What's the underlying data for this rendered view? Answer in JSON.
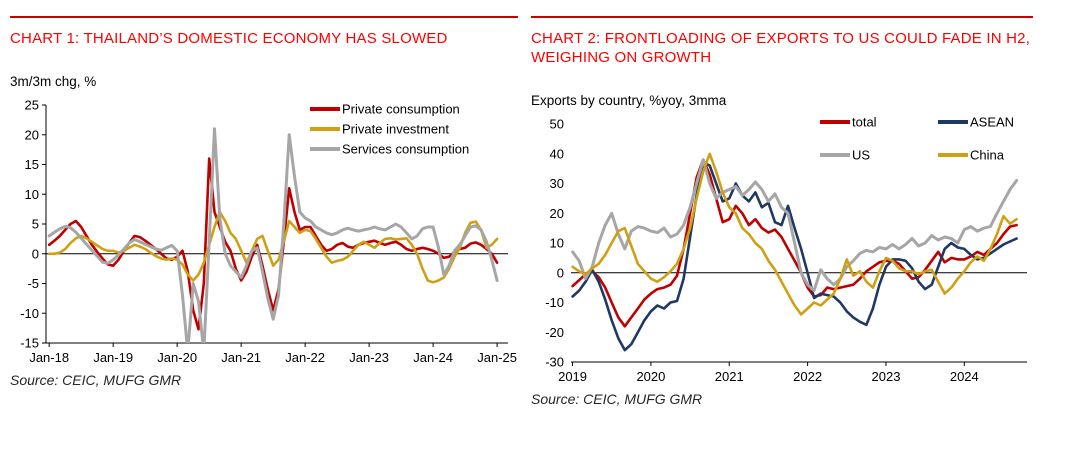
{
  "page": {
    "accent_rule_color": "#CC0000",
    "title_color": "#FF0000",
    "axis_color": "#000000",
    "source_note": "Source: CEIC, MUFG GMR"
  },
  "chart_data": [
    {
      "id": "chart1",
      "type": "line",
      "title": "CHART 1: THAILAND’S DOMESTIC ECONOMY HAS SLOWED",
      "subtitle": "3m/3m chg, %",
      "source": "Source: CEIC, MUFG GMR",
      "x_start": 2018.0,
      "x_step_months": 1,
      "xlim": [
        2017.95,
        2025.17
      ],
      "ylim": [
        -15,
        25
      ],
      "y_tick_step": 5,
      "x_ticks": {
        "values": [
          2018,
          2019,
          2020,
          2021,
          2022,
          2023,
          2024,
          2025
        ],
        "labels": [
          "Jan-18",
          "Jan-19",
          "Jan-20",
          "Jan-21",
          "Jan-22",
          "Jan-23",
          "Jan-24",
          "Jan-25"
        ]
      },
      "grid": false,
      "legend_position": "top-right-stacked",
      "series": [
        {
          "name": "Private consumption",
          "color": "#C00000",
          "width": 2.6,
          "values": [
            1.5,
            2.2,
            3,
            4,
            5,
            5.5,
            4.5,
            3,
            1.5,
            0.3,
            -0.8,
            -1.8,
            -2,
            -1,
            0.5,
            1.8,
            3,
            2.8,
            2.2,
            1.5,
            0.8,
            0,
            -0.8,
            -1,
            -0.5,
            0.5,
            -3,
            -9.5,
            -12.7,
            -5,
            16,
            7,
            4.5,
            2,
            0.5,
            -2.5,
            -4.5,
            -3,
            -0.5,
            1.5,
            -2,
            -6,
            -9.5,
            -6,
            2,
            11,
            7,
            4,
            4.5,
            4.5,
            3,
            1.5,
            0.5,
            0.8,
            1.5,
            1.8,
            1.2,
            1,
            1.5,
            1.8,
            2,
            2.2,
            1.8,
            1.5,
            1.8,
            2,
            1.5,
            0.8,
            0.5,
            0.8,
            1,
            0.8,
            0.5,
            0,
            -0.7,
            -0.5,
            0.3,
            0.8,
            1,
            1.7,
            1.9,
            1.5,
            0.8,
            0,
            -1.5
          ]
        },
        {
          "name": "Private investment",
          "color": "#D0A014",
          "width": 2.6,
          "values": [
            0,
            0,
            0.2,
            0.8,
            1.8,
            2.6,
            3,
            2.6,
            2,
            1.4,
            0.8,
            0.5,
            0.5,
            0.2,
            0.5,
            1,
            1.5,
            1.2,
            0.8,
            0.2,
            -0.4,
            -0.8,
            -1,
            -0.8,
            -1,
            -1.8,
            -3.5,
            -4.5,
            -3.5,
            -1.5,
            1.5,
            4.5,
            7,
            5.5,
            3.5,
            2.5,
            0.5,
            -1.5,
            0.5,
            2.5,
            3,
            0.5,
            -2,
            -1,
            2,
            5.5,
            4.5,
            3.5,
            4,
            3.8,
            2.5,
            1,
            -0.5,
            -1.5,
            -1.2,
            -1,
            -0.5,
            0.5,
            1.5,
            2,
            1.5,
            1,
            1.8,
            2.5,
            2.6,
            2.4,
            2.5,
            2.6,
            1.5,
            0,
            -2.5,
            -4.5,
            -4.8,
            -4.5,
            -4,
            -2.5,
            -0.5,
            1,
            3.5,
            5.2,
            5.4,
            4,
            1,
            1.5,
            2.5
          ]
        },
        {
          "name": "Services consumption",
          "color": "#A6A6A6",
          "width": 3,
          "values": [
            3,
            3.6,
            4.2,
            4.6,
            4.4,
            3.6,
            2.6,
            1.6,
            0.6,
            -0.4,
            -1.4,
            -1.6,
            -1,
            -0.2,
            0.8,
            1.8,
            2.4,
            2,
            1.6,
            1.2,
            0.8,
            0.6,
            1,
            1.4,
            0.5,
            -7,
            -16.5,
            -5,
            -8,
            -16.5,
            2,
            21,
            6,
            0,
            -2,
            -3,
            -4,
            -2,
            0.5,
            1,
            -3,
            -7.5,
            -11,
            -7,
            5,
            20,
            13,
            7,
            6,
            5.5,
            4.5,
            4,
            3.5,
            3.2,
            3.5,
            4,
            4.3,
            4,
            3.8,
            4,
            4.2,
            4.5,
            4.2,
            4,
            4.5,
            5,
            4.5,
            3.5,
            2.5,
            3,
            4.2,
            4.5,
            4.5,
            1,
            -3.5,
            -2,
            0.5,
            1.5,
            3,
            4.5,
            4.7,
            4,
            2,
            -1,
            -4.5
          ]
        }
      ]
    },
    {
      "id": "chart2",
      "type": "line",
      "title": "CHART 2: FRONTLOADING OF EXPORTS TO US COULD FADE IN H2, WEIGHING ON GROWTH",
      "subtitle": "Exports by country, %yoy, 3mma",
      "source": "Source: CEIC, MUFG GMR",
      "x_start": 2019.0,
      "x_step_months": 1,
      "xlim": [
        2018.98,
        2024.8
      ],
      "ylim": [
        -30,
        50
      ],
      "y_tick_step": 10,
      "x_ticks": {
        "values": [
          2019,
          2020,
          2021,
          2022,
          2023,
          2024
        ],
        "labels": [
          "2019",
          "2020",
          "2021",
          "2022",
          "2023",
          "2024"
        ]
      },
      "grid": false,
      "legend_position": "top-two-columns",
      "series": [
        {
          "name": "total",
          "color": "#C00000",
          "width": 2.6,
          "values": [
            -4.5,
            -2.5,
            -0.5,
            0.5,
            -1.5,
            -5,
            -10,
            -15,
            -18,
            -15,
            -12,
            -9,
            -7,
            -5.5,
            -5,
            -4,
            -1,
            8,
            20,
            32,
            38,
            33,
            25,
            17,
            18,
            22.5,
            20,
            16,
            18,
            15,
            13.5,
            14.5,
            12,
            8,
            4,
            0,
            -5,
            -8,
            -7.5,
            -5,
            -5.5,
            -5,
            -4.5,
            -4,
            -2,
            0.5,
            2,
            3.5,
            4,
            4,
            3,
            0.5,
            -2,
            -1.5,
            1,
            4,
            7,
            3.5,
            5,
            4.5,
            4.5,
            5.5,
            7,
            6,
            8,
            10,
            13,
            15.5,
            16
          ]
        },
        {
          "name": "ASEAN",
          "color": "#1F3864",
          "width": 2.6,
          "values": [
            -8,
            -6,
            -3,
            1,
            -3,
            -9,
            -16,
            -22,
            -26,
            -24,
            -20,
            -16,
            -13,
            -11,
            -12,
            -10,
            -9.5,
            -2,
            12,
            26,
            37,
            36,
            30,
            24,
            25,
            30,
            26,
            24,
            27,
            22,
            23.5,
            17,
            16,
            22.5,
            15,
            8,
            0,
            -8.5,
            -7,
            -7.5,
            -8,
            -10,
            -13,
            -15,
            -16.5,
            -17.5,
            -12,
            -4,
            2,
            4.5,
            4.5,
            4,
            1.5,
            -3,
            -5.5,
            -4,
            2,
            8,
            10,
            8.5,
            8,
            6,
            4.5,
            5,
            6.5,
            8,
            9.5,
            10.5,
            11.5
          ]
        },
        {
          "name": "US",
          "color": "#A6A6A6",
          "width": 3,
          "values": [
            7,
            4,
            -2,
            2,
            10,
            16,
            20,
            13,
            8,
            14,
            15.5,
            15,
            14,
            13.5,
            15,
            12,
            13,
            16,
            22,
            30,
            38,
            30,
            25,
            27,
            28,
            29,
            26,
            28,
            30.5,
            28,
            24,
            26.5,
            22,
            20,
            10,
            0,
            -4,
            -6,
            1,
            -2,
            -4,
            -2,
            2,
            4,
            6.5,
            7.5,
            7,
            8.5,
            8,
            9.5,
            8,
            9.5,
            11.5,
            9,
            10,
            12.5,
            11,
            12,
            11.5,
            10,
            14.5,
            15.5,
            14,
            15,
            15.5,
            20,
            24,
            28,
            31
          ]
        },
        {
          "name": "China",
          "color": "#D0A014",
          "width": 2.6,
          "values": [
            2,
            0.5,
            -0.5,
            1.5,
            3,
            6,
            10,
            14,
            15,
            9,
            3,
            0.5,
            -2,
            -3,
            -1.5,
            0.5,
            3,
            8,
            15,
            25,
            34,
            40,
            34,
            27,
            22,
            20,
            15,
            13,
            10,
            8,
            4,
            1,
            -3,
            -7,
            -11,
            -14,
            -12,
            -10,
            -11,
            -9,
            -7,
            -2,
            4.5,
            -1,
            0.5,
            -3,
            -5,
            0.5,
            5,
            4,
            1.5,
            0.5,
            0.5,
            -0.5,
            0.5,
            1,
            -3,
            -7,
            -5,
            -2,
            0.5,
            3.5,
            5.5,
            4,
            8,
            13,
            19,
            16.5,
            18
          ]
        }
      ]
    }
  ]
}
